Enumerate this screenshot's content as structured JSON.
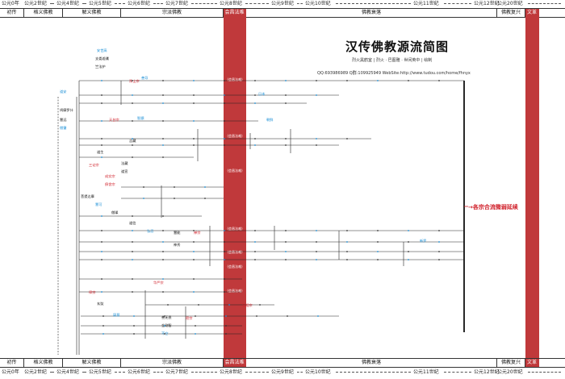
{
  "title": "汉传佛教源流简图",
  "subtitle": "烈火黑鹤室 | 烈火 · 巴图雅 · 世间英中 | 绘制",
  "contact": "QQ:693986989  Q群:109925949  WebSite:http://www.tudou.com/home/fhnyx",
  "timeline": [
    "公元0年",
    "公元2世纪",
    "公元4世纪",
    "公元5世纪",
    "公元6世纪",
    "公元7世纪",
    "公元8世纪",
    "公元9世纪",
    "公元10世纪",
    "公元11世纪",
    "公元12世纪",
    "公元20世纪"
  ],
  "bands": [
    "初传",
    "格义佛教",
    "解义佛教",
    "宗派佛教",
    "会昌法难",
    "佛教衰落",
    "佛教复兴",
    "文革"
  ],
  "ban_label": "(会昌法难)",
  "end_note": "各宗合流微弱延续",
  "colors": {
    "accent": "#c0393b",
    "blue": "#1a8fd6",
    "red": "#d0202a"
  },
  "masters": [
    "安世高",
    "支娄迦谶",
    "竺法护",
    "道安",
    "鸠摩罗什",
    "慧远",
    "僧肇",
    "道生",
    "菩提达摩",
    "慧可",
    "僧璨",
    "道信",
    "弘忍",
    "慧能",
    "神秀",
    "智顗",
    "吉藏",
    "玄奘",
    "窥基",
    "法藏",
    "道宣",
    "善导",
    "善无畏",
    "金刚智",
    "不空"
  ],
  "schools": [
    "净土宗",
    "禅宗",
    "天台宗",
    "三论宗",
    "法相宗",
    "华严宗",
    "律宗",
    "密宗",
    "成实宗",
    "俱舍宗"
  ],
  "regions": [
    "日本",
    "朝鲜",
    "新罗"
  ]
}
